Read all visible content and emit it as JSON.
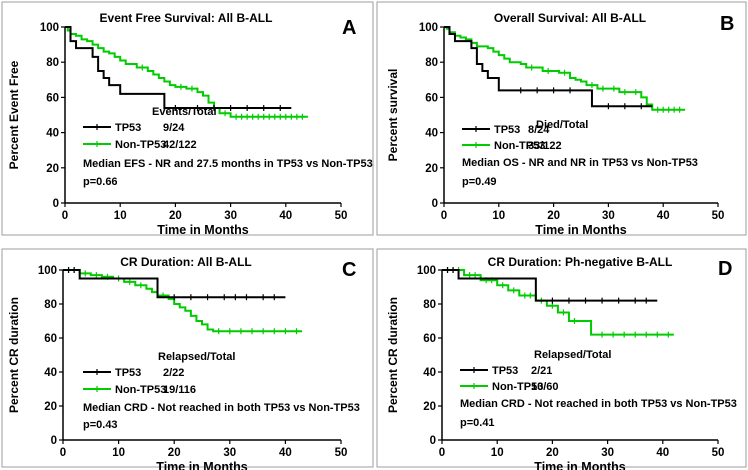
{
  "colors": {
    "tp53": "#000000",
    "non_tp53": "#00cc00",
    "axis": "#000000",
    "panel_border": "#9e9e9e"
  },
  "chart_data": [
    {
      "type": "line",
      "panel_letter": "A",
      "title": "Event Free Survival: All B-ALL",
      "xlabel": "Time in Months",
      "ylabel": "Percent Event Free",
      "xlim": [
        0,
        50
      ],
      "ylim": [
        0,
        100
      ],
      "x_ticks": [
        "0",
        "10",
        "20",
        "30",
        "40",
        "50"
      ],
      "y_ticks": [
        "0",
        "20",
        "40",
        "60",
        "80",
        "100"
      ],
      "grid": false,
      "legend_header": "Events/Total",
      "legend": [
        {
          "label": "TP53",
          "value": "9/24"
        },
        {
          "label": "Non-TP53",
          "value": "42/122"
        }
      ],
      "annotations": [
        "Median EFS -  NR and 27.5 months in TP53 vs Non-TP53",
        "p=0.66"
      ],
      "series": [
        {
          "name": "TP53",
          "color_key": "tp53",
          "steps": [
            [
              0,
              100
            ],
            [
              1,
              92
            ],
            [
              2,
              88
            ],
            [
              5,
              83
            ],
            [
              6,
              75
            ],
            [
              7,
              71
            ],
            [
              8,
              67
            ],
            [
              10,
              62
            ],
            [
              18,
              54
            ],
            [
              41,
              54
            ]
          ],
          "censor": [
            20,
            24,
            27,
            30,
            33,
            36,
            39
          ]
        },
        {
          "name": "Non-TP53",
          "color_key": "non_tp53",
          "steps": [
            [
              0,
              100
            ],
            [
              0.5,
              98
            ],
            [
              1,
              96
            ],
            [
              2,
              95
            ],
            [
              3,
              93
            ],
            [
              4,
              92
            ],
            [
              5,
              90
            ],
            [
              6,
              88
            ],
            [
              7,
              86
            ],
            [
              8,
              85
            ],
            [
              9,
              83
            ],
            [
              10,
              81
            ],
            [
              11,
              79
            ],
            [
              13,
              77
            ],
            [
              15,
              75
            ],
            [
              16,
              73
            ],
            [
              17,
              71
            ],
            [
              18,
              69
            ],
            [
              19,
              67
            ],
            [
              20,
              66
            ],
            [
              22,
              65
            ],
            [
              24,
              63
            ],
            [
              25,
              61
            ],
            [
              26,
              57
            ],
            [
              27,
              54
            ],
            [
              28,
              51
            ],
            [
              30,
              49
            ],
            [
              44,
              49
            ]
          ],
          "censor": [
            14,
            21,
            23,
            29,
            31,
            32,
            33,
            34,
            35,
            36,
            37,
            38,
            39,
            40,
            41,
            42,
            43
          ]
        }
      ]
    },
    {
      "type": "line",
      "panel_letter": "B",
      "title": "Overall Survival:  All B-ALL",
      "xlabel": "Time in Months",
      "ylabel": "Percent survival",
      "xlim": [
        0,
        50
      ],
      "ylim": [
        0,
        100
      ],
      "x_ticks": [
        "0",
        "10",
        "20",
        "30",
        "40",
        "50"
      ],
      "y_ticks": [
        "0",
        "20",
        "40",
        "60",
        "80",
        "100"
      ],
      "grid": false,
      "legend_header": "Died/Total",
      "legend": [
        {
          "label": "TP53",
          "value": "8/24"
        },
        {
          "label": "Non-TP53",
          "value": "33/122"
        }
      ],
      "annotations": [
        "Median OS - NR and NR in TP53 vs Non-TP53",
        "p=0.49"
      ],
      "series": [
        {
          "name": "TP53",
          "color_key": "tp53",
          "steps": [
            [
              0,
              100
            ],
            [
              1,
              96
            ],
            [
              2,
              92
            ],
            [
              5,
              88
            ],
            [
              6,
              79
            ],
            [
              7,
              75
            ],
            [
              8,
              71
            ],
            [
              10,
              64
            ],
            [
              27,
              55
            ],
            [
              38,
              55
            ]
          ],
          "censor": [
            14,
            17,
            20,
            23,
            30,
            33,
            36
          ]
        },
        {
          "name": "Non-TP53",
          "color_key": "non_tp53",
          "steps": [
            [
              0,
              100
            ],
            [
              0.5,
              99
            ],
            [
              1,
              97
            ],
            [
              2,
              95
            ],
            [
              3,
              94
            ],
            [
              4,
              93
            ],
            [
              5,
              91
            ],
            [
              6,
              89
            ],
            [
              8,
              88
            ],
            [
              9,
              86
            ],
            [
              10,
              84
            ],
            [
              11,
              82
            ],
            [
              12,
              80
            ],
            [
              14,
              79
            ],
            [
              15,
              77
            ],
            [
              18,
              75
            ],
            [
              21,
              74
            ],
            [
              23,
              71
            ],
            [
              24,
              70
            ],
            [
              25,
              69
            ],
            [
              26,
              67
            ],
            [
              28,
              65
            ],
            [
              32,
              63
            ],
            [
              36,
              60
            ],
            [
              37,
              56
            ],
            [
              38,
              53
            ],
            [
              44,
              53
            ]
          ],
          "censor": [
            16,
            19,
            22,
            27,
            29,
            31,
            33,
            35,
            39,
            40,
            41,
            42,
            43
          ]
        }
      ]
    },
    {
      "type": "line",
      "panel_letter": "C",
      "title": "CR Duration:  All B-ALL",
      "xlabel": "Time in Months",
      "ylabel": "Percent CR duration",
      "xlim": [
        0,
        50
      ],
      "ylim": [
        0,
        100
      ],
      "x_ticks": [
        "0",
        "10",
        "20",
        "30",
        "40",
        "50"
      ],
      "y_ticks": [
        "0",
        "20",
        "40",
        "60",
        "80",
        "100"
      ],
      "grid": false,
      "legend_header": "Relapsed/Total",
      "legend": [
        {
          "label": "TP53",
          "value": "2/22"
        },
        {
          "label": "Non-TP53",
          "value": "19/116"
        }
      ],
      "annotations": [
        "Median CRD - Not reached in both TP53 vs Non-TP53",
        "p=0.43"
      ],
      "series": [
        {
          "name": "TP53",
          "color_key": "tp53",
          "steps": [
            [
              0,
              100
            ],
            [
              3,
              95
            ],
            [
              17,
              84
            ],
            [
              40,
              84
            ]
          ],
          "censor": [
            1,
            2,
            20,
            23,
            26,
            29,
            31,
            33,
            36,
            38
          ]
        },
        {
          "name": "Non-TP53",
          "color_key": "non_tp53",
          "steps": [
            [
              0,
              100
            ],
            [
              3,
              98
            ],
            [
              5,
              97
            ],
            [
              7,
              96
            ],
            [
              9,
              95
            ],
            [
              11,
              93
            ],
            [
              13,
              91
            ],
            [
              15,
              89
            ],
            [
              16,
              87
            ],
            [
              17,
              85
            ],
            [
              19,
              83
            ],
            [
              20,
              80
            ],
            [
              21,
              78
            ],
            [
              22,
              76
            ],
            [
              23,
              73
            ],
            [
              24,
              70
            ],
            [
              25,
              68
            ],
            [
              26,
              65
            ],
            [
              27,
              64
            ],
            [
              43,
              64
            ]
          ],
          "censor": [
            1,
            2,
            4,
            6,
            8,
            10,
            12,
            14,
            18,
            28,
            30,
            32,
            34,
            36,
            38,
            40,
            42
          ]
        }
      ]
    },
    {
      "type": "line",
      "panel_letter": "D",
      "title": "CR Duration:  Ph-negative B-ALL",
      "xlabel": "Time in Months",
      "ylabel": "Percent CR duration",
      "xlim": [
        0,
        50
      ],
      "ylim": [
        0,
        100
      ],
      "x_ticks": [
        "0",
        "10",
        "20",
        "30",
        "40",
        "50"
      ],
      "y_ticks": [
        "0",
        "20",
        "40",
        "60",
        "80",
        "100"
      ],
      "grid": false,
      "legend_header": "Relapsed/Total",
      "legend": [
        {
          "label": "TP53",
          "value": "2/21"
        },
        {
          "label": "Non-TP53",
          "value": "10/60"
        }
      ],
      "annotations": [
        "Median CRD - Not reached in both TP53 vs Non-TP53",
        "p=0.41"
      ],
      "series": [
        {
          "name": "TP53",
          "color_key": "tp53",
          "steps": [
            [
              0,
              100
            ],
            [
              3,
              95
            ],
            [
              17,
              82
            ],
            [
              39,
              82
            ]
          ],
          "censor": [
            1,
            2,
            20,
            23,
            26,
            29,
            32,
            35,
            37
          ]
        },
        {
          "name": "Non-TP53",
          "color_key": "non_tp53",
          "steps": [
            [
              0,
              100
            ],
            [
              4,
              97
            ],
            [
              7,
              94
            ],
            [
              10,
              91
            ],
            [
              12,
              88
            ],
            [
              14,
              85
            ],
            [
              17,
              82
            ],
            [
              19,
              79
            ],
            [
              21,
              75
            ],
            [
              23,
              70
            ],
            [
              27,
              62
            ],
            [
              42,
              62
            ]
          ],
          "censor": [
            1,
            2,
            3,
            5,
            6,
            8,
            9,
            11,
            13,
            15,
            16,
            18,
            20,
            22,
            24,
            29,
            31,
            33,
            35,
            37,
            39,
            41
          ]
        }
      ]
    }
  ]
}
